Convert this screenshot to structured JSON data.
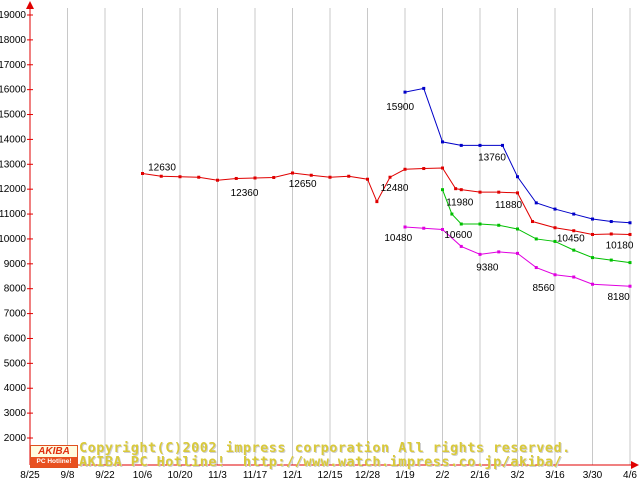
{
  "watermark": {
    "line1": "Copyright(C)2002 impress corporation All rights reserved.",
    "line2": "AKIBA PC Hotline!  http://www.watch.impress.co.jp/akiba/",
    "text_color": "#d9c93a"
  },
  "logo": {
    "top": "AKIBA",
    "bottom": "PC Hotline!"
  },
  "chart_data": {
    "type": "line",
    "title": "",
    "xlabel": "",
    "ylabel": "",
    "x_labels": [
      "8/25",
      "9/8",
      "9/22",
      "10/6",
      "10/20",
      "11/3",
      "11/17",
      "12/1",
      "12/15",
      "12/28",
      "1/19",
      "2/2",
      "2/16",
      "3/2",
      "3/16",
      "3/30",
      "4/6"
    ],
    "yticks": [
      2000,
      3000,
      4000,
      5000,
      6000,
      7000,
      8000,
      9000,
      10000,
      11000,
      12000,
      13000,
      14000,
      15000,
      16000,
      17000,
      18000,
      19000
    ],
    "ylim": [
      2000,
      19500
    ],
    "grid": "vertical",
    "legend": "none",
    "colors": {
      "axis": "#e00000",
      "grid": "#c8c8c8",
      "label": "#000000"
    },
    "series": [
      {
        "name": "price-blue",
        "color": "#0000c8",
        "points": [
          [
            10,
            15900
          ],
          [
            10.5,
            16050
          ],
          [
            11,
            13900
          ],
          [
            11.5,
            13760
          ],
          [
            12,
            13760
          ],
          [
            12.6,
            13760
          ],
          [
            13,
            12500
          ],
          [
            13.5,
            11450
          ],
          [
            14,
            11200
          ],
          [
            14.5,
            11000
          ],
          [
            15,
            10800
          ],
          [
            15.5,
            10700
          ],
          [
            16,
            10650
          ]
        ]
      },
      {
        "name": "price-red",
        "color": "#e00000",
        "points": [
          [
            3,
            12630
          ],
          [
            3.5,
            12520
          ],
          [
            4,
            12500
          ],
          [
            4.5,
            12480
          ],
          [
            5,
            12360
          ],
          [
            5.5,
            12430
          ],
          [
            6,
            12450
          ],
          [
            6.5,
            12470
          ],
          [
            7,
            12650
          ],
          [
            7.5,
            12560
          ],
          [
            8,
            12480
          ],
          [
            8.5,
            12520
          ],
          [
            9,
            12400
          ],
          [
            9.25,
            11500
          ],
          [
            9.6,
            12480
          ],
          [
            10,
            12800
          ],
          [
            10.5,
            12830
          ],
          [
            11,
            12850
          ],
          [
            11.35,
            12020
          ],
          [
            11.5,
            11980
          ],
          [
            12,
            11880
          ],
          [
            12.5,
            11880
          ],
          [
            13,
            11850
          ],
          [
            13.4,
            10700
          ],
          [
            14,
            10450
          ],
          [
            14.5,
            10330
          ],
          [
            15,
            10180
          ],
          [
            15.5,
            10200
          ],
          [
            16,
            10180
          ]
        ]
      },
      {
        "name": "price-green",
        "color": "#00c000",
        "points": [
          [
            11,
            11980
          ],
          [
            11.25,
            11000
          ],
          [
            11.5,
            10600
          ],
          [
            12,
            10600
          ],
          [
            12.5,
            10550
          ],
          [
            13,
            10400
          ],
          [
            13.5,
            10000
          ],
          [
            14,
            9900
          ],
          [
            14.5,
            9550
          ],
          [
            15,
            9250
          ],
          [
            15.5,
            9150
          ],
          [
            16,
            9050
          ]
        ]
      },
      {
        "name": "price-magenta",
        "color": "#e000e0",
        "points": [
          [
            10,
            10480
          ],
          [
            10.5,
            10430
          ],
          [
            11,
            10380
          ],
          [
            11.5,
            9700
          ],
          [
            12,
            9380
          ],
          [
            12.5,
            9480
          ],
          [
            13,
            9420
          ],
          [
            13.5,
            8850
          ],
          [
            14,
            8560
          ],
          [
            14.5,
            8470
          ],
          [
            15,
            8180
          ],
          [
            16,
            8100
          ]
        ]
      }
    ],
    "annotations": [
      {
        "text": "12630",
        "x": 3.15,
        "v": 12630,
        "dy": -3
      },
      {
        "text": "12360",
        "x": 5.35,
        "v": 12360,
        "dy": 16
      },
      {
        "text": "12650",
        "x": 6.9,
        "v": 12650,
        "dy": 14
      },
      {
        "text": "12480",
        "x": 9.35,
        "v": 12480,
        "dy": 14
      },
      {
        "text": "15900",
        "x": 9.5,
        "v": 15900,
        "dy": 18
      },
      {
        "text": "13760",
        "x": 11.95,
        "v": 13760,
        "dy": 15
      },
      {
        "text": "11980",
        "x": 11.1,
        "v": 11980,
        "dy": 16
      },
      {
        "text": "11880",
        "x": 12.4,
        "v": 11880,
        "dy": 16
      },
      {
        "text": "10480",
        "x": 9.45,
        "v": 10480,
        "dy": 14
      },
      {
        "text": "10600",
        "x": 11.05,
        "v": 10600,
        "dy": 14
      },
      {
        "text": "9380",
        "x": 11.9,
        "v": 9380,
        "dy": 16
      },
      {
        "text": "10450",
        "x": 14.05,
        "v": 10450,
        "dy": 14
      },
      {
        "text": "8560",
        "x": 13.4,
        "v": 8560,
        "dy": 16
      },
      {
        "text": "10180",
        "x": 15.35,
        "v": 10180,
        "dy": 14
      },
      {
        "text": "8180",
        "x": 15.4,
        "v": 8180,
        "dy": 16
      }
    ]
  }
}
